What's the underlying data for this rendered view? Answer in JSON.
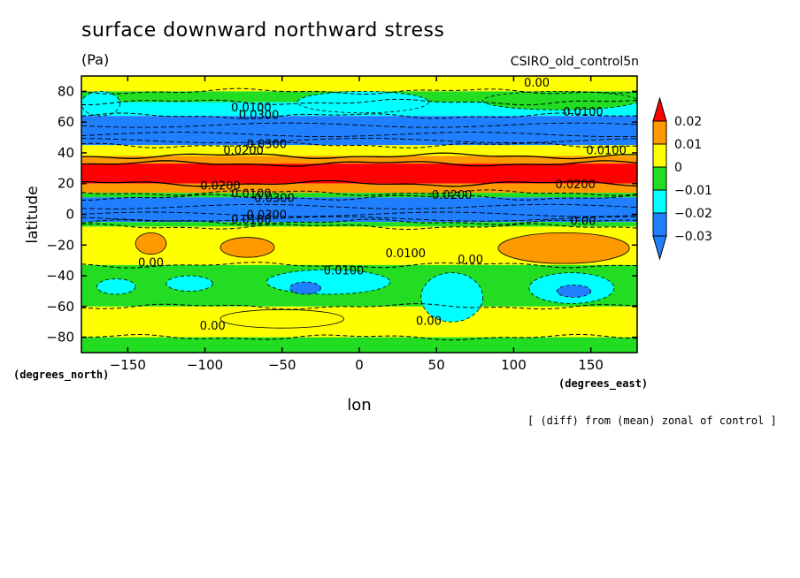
{
  "header": {
    "title": "surface downward northward stress",
    "units": "(Pa)",
    "model": "CSIRO_old_control5n",
    "footnote": "[ (diff) from (mean) zonal of control ]"
  },
  "chart_data": {
    "type": "heatmap",
    "title": "surface downward northward stress",
    "xlabel": "lon",
    "ylabel": "latitude",
    "x_units_label": "(degrees_east)",
    "y_units_label": "(degrees_north)",
    "xlim": [
      -180,
      180
    ],
    "ylim": [
      -90,
      90
    ],
    "x_ticks": [
      -150,
      -100,
      -50,
      0,
      50,
      100,
      150
    ],
    "y_ticks": [
      -80,
      -60,
      -40,
      -20,
      0,
      20,
      40,
      60,
      80
    ],
    "colorbar": {
      "levels": [
        -0.03,
        -0.02,
        -0.01,
        0,
        0.01,
        0.02
      ],
      "tick_labels": [
        "0.02",
        "0.01",
        "0",
        "−0.01",
        "−0.02",
        "−0.03"
      ],
      "bins": [
        {
          "range": "< -0.03",
          "color": "#1f7fff"
        },
        {
          "range": "-0.03 to -0.02",
          "color": "#1f7fff"
        },
        {
          "range": "-0.02 to -0.01",
          "color": "#00ffff"
        },
        {
          "range": "-0.01 to 0",
          "color": "#22dd22"
        },
        {
          "range": "0 to 0.01",
          "color": "#ffff00"
        },
        {
          "range": "0.01 to 0.02",
          "color": "#ff9900"
        },
        {
          "range": "> 0.02",
          "color": "#ff0000"
        }
      ]
    },
    "zonal_bands": [
      {
        "lat_from": 90,
        "lat_to": 80,
        "value": 0.005
      },
      {
        "lat_from": 80,
        "lat_to": 73,
        "value": -0.005
      },
      {
        "lat_from": 73,
        "lat_to": 64,
        "value": -0.015
      },
      {
        "lat_from": 64,
        "lat_to": 45,
        "value": -0.035
      },
      {
        "lat_from": 45,
        "lat_to": 38,
        "value": 0.005
      },
      {
        "lat_from": 38,
        "lat_to": 33,
        "value": 0.015
      },
      {
        "lat_from": 33,
        "lat_to": 20,
        "value": 0.025
      },
      {
        "lat_from": 20,
        "lat_to": 14,
        "value": 0.015
      },
      {
        "lat_from": 14,
        "lat_to": 11,
        "value": -0.005
      },
      {
        "lat_from": 11,
        "lat_to": -5,
        "value": -0.035
      },
      {
        "lat_from": -5,
        "lat_to": -8,
        "value": -0.005
      },
      {
        "lat_from": -8,
        "lat_to": -33,
        "value": 0.005
      },
      {
        "lat_from": -33,
        "lat_to": -60,
        "value": -0.005
      },
      {
        "lat_from": -60,
        "lat_to": -80,
        "value": 0.005
      },
      {
        "lat_from": -80,
        "lat_to": -90,
        "value": -0.005
      }
    ],
    "anomalies": [
      {
        "lon_range": [
          -180,
          -155
        ],
        "lat_range": [
          80,
          64
        ],
        "value": -0.015
      },
      {
        "lon_range": [
          -40,
          45
        ],
        "lat_range": [
          80,
          66
        ],
        "value": -0.015
      },
      {
        "lon_range": [
          80,
          180
        ],
        "lat_range": [
          80,
          68
        ],
        "value": -0.005
      },
      {
        "lon_range": [
          -145,
          -125
        ],
        "lat_range": [
          -12,
          -26
        ],
        "value": 0.015
      },
      {
        "lon_range": [
          -90,
          -55
        ],
        "lat_range": [
          -15,
          -28
        ],
        "value": 0.015
      },
      {
        "lon_range": [
          90,
          175
        ],
        "lat_range": [
          -12,
          -32
        ],
        "value": 0.015
      },
      {
        "lon_range": [
          -170,
          -145
        ],
        "lat_range": [
          -42,
          -52
        ],
        "value": -0.015
      },
      {
        "lon_range": [
          -125,
          -95
        ],
        "lat_range": [
          -40,
          -50
        ],
        "value": -0.015
      },
      {
        "lon_range": [
          -60,
          20
        ],
        "lat_range": [
          -36,
          -52
        ],
        "value": -0.015
      },
      {
        "lon_range": [
          40,
          80
        ],
        "lat_range": [
          -38,
          -70
        ],
        "value": -0.015
      },
      {
        "lon_range": [
          110,
          165
        ],
        "lat_range": [
          -38,
          -58
        ],
        "value": -0.015
      },
      {
        "lon_range": [
          -45,
          -25
        ],
        "lat_range": [
          -44,
          -52
        ],
        "value": -0.025
      },
      {
        "lon_range": [
          128,
          150
        ],
        "lat_range": [
          -46,
          -54
        ],
        "value": -0.025
      },
      {
        "lon_range": [
          -90,
          -10
        ],
        "lat_range": [
          -62,
          -74
        ],
        "value": 0.005
      }
    ],
    "contour_labels": [
      {
        "text": "0.00",
        "lon": 115,
        "lat": 83
      },
      {
        "text": "0.0100",
        "lon": 145,
        "lat": 64
      },
      {
        "text": "0.0100",
        "lon": -70,
        "lat": 67
      },
      {
        "text": "0.0300",
        "lon": -65,
        "lat": 62
      },
      {
        "text": "0.0300",
        "lon": -60,
        "lat": 43
      },
      {
        "text": "0.0200",
        "lon": -75,
        "lat": 39
      },
      {
        "text": "0.0100",
        "lon": 160,
        "lat": 39
      },
      {
        "text": "0.0200",
        "lon": -90,
        "lat": 16
      },
      {
        "text": "0.0200",
        "lon": 140,
        "lat": 17
      },
      {
        "text": "0.0100",
        "lon": -70,
        "lat": 11
      },
      {
        "text": "0.0300",
        "lon": -55,
        "lat": 8
      },
      {
        "text": "0.0200",
        "lon": 60,
        "lat": 10
      },
      {
        "text": "0.0300",
        "lon": -60,
        "lat": -3
      },
      {
        "text": "0.0100",
        "lon": -70,
        "lat": -6
      },
      {
        "text": "0.00",
        "lon": 145,
        "lat": -7
      },
      {
        "text": "0.0100",
        "lon": 30,
        "lat": -28
      },
      {
        "text": "0.00",
        "lon": 72,
        "lat": -32
      },
      {
        "text": "0.00",
        "lon": -135,
        "lat": -34
      },
      {
        "text": "0.0100",
        "lon": -10,
        "lat": -39
      },
      {
        "text": "0.00",
        "lon": -95,
        "lat": -75
      },
      {
        "text": "0.00",
        "lon": 45,
        "lat": -72
      }
    ],
    "grid": false,
    "legend": "colorbar right"
  }
}
